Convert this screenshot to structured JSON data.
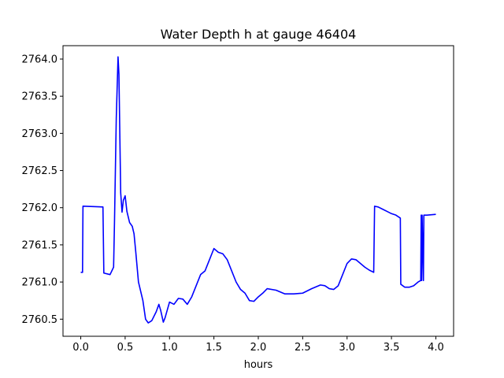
{
  "chart_data": {
    "type": "line",
    "title": "Water Depth h at gauge 46404",
    "xlabel": "hours",
    "ylabel": "",
    "xlim": [
      -0.2,
      4.2
    ],
    "ylim": [
      2760.27,
      2764.18
    ],
    "xticks": [
      0.0,
      0.5,
      1.0,
      1.5,
      2.0,
      2.5,
      3.0,
      3.5,
      4.0
    ],
    "xtick_labels": [
      "0.0",
      "0.5",
      "1.0",
      "1.5",
      "2.0",
      "2.5",
      "3.0",
      "3.5",
      "4.0"
    ],
    "yticks": [
      2760.5,
      2761.0,
      2761.5,
      2762.0,
      2762.5,
      2763.0,
      2763.5,
      2764.0
    ],
    "ytick_labels": [
      "2760.5",
      "2761.0",
      "2761.5",
      "2762.0",
      "2762.5",
      "2763.0",
      "2763.5",
      "2764.0"
    ],
    "grid": false,
    "series": [
      {
        "color": "#0000ff",
        "x": [
          0.0,
          0.02,
          0.025,
          0.25,
          0.26,
          0.33,
          0.37,
          0.38,
          0.4,
          0.42,
          0.43,
          0.45,
          0.465,
          0.48,
          0.5,
          0.52,
          0.55,
          0.58,
          0.6,
          0.62,
          0.65,
          0.7,
          0.73,
          0.76,
          0.8,
          0.85,
          0.88,
          0.9,
          0.93,
          0.95,
          1.0,
          1.05,
          1.1,
          1.15,
          1.2,
          1.25,
          1.3,
          1.35,
          1.4,
          1.45,
          1.5,
          1.55,
          1.6,
          1.65,
          1.7,
          1.75,
          1.8,
          1.85,
          1.9,
          1.95,
          2.0,
          2.05,
          2.1,
          2.2,
          2.3,
          2.4,
          2.5,
          2.6,
          2.7,
          2.75,
          2.8,
          2.85,
          2.9,
          2.95,
          3.0,
          3.05,
          3.1,
          3.15,
          3.2,
          3.25,
          3.3,
          3.31,
          3.35,
          3.4,
          3.45,
          3.5,
          3.55,
          3.6,
          3.605,
          3.65,
          3.7,
          3.75,
          3.8,
          3.83,
          3.835,
          3.84,
          3.845,
          3.86,
          3.865,
          3.87,
          3.9,
          4.0
        ],
        "y": [
          2761.13,
          2761.13,
          2762.02,
          2762.01,
          2761.12,
          2761.1,
          2761.2,
          2761.8,
          2763.2,
          2764.03,
          2763.8,
          2762.2,
          2761.94,
          2762.1,
          2762.16,
          2761.95,
          2761.8,
          2761.75,
          2761.65,
          2761.4,
          2761.0,
          2760.75,
          2760.5,
          2760.45,
          2760.48,
          2760.6,
          2760.7,
          2760.62,
          2760.46,
          2760.52,
          2760.73,
          2760.7,
          2760.78,
          2760.77,
          2760.7,
          2760.8,
          2760.95,
          2761.1,
          2761.15,
          2761.3,
          2761.45,
          2761.4,
          2761.38,
          2761.3,
          2761.15,
          2761.0,
          2760.9,
          2760.85,
          2760.75,
          2760.74,
          2760.8,
          2760.85,
          2760.91,
          2760.89,
          2760.84,
          2760.84,
          2760.85,
          2760.91,
          2760.96,
          2760.95,
          2760.91,
          2760.9,
          2760.95,
          2761.1,
          2761.25,
          2761.31,
          2761.3,
          2761.25,
          2761.2,
          2761.16,
          2761.13,
          2762.02,
          2762.01,
          2761.98,
          2761.95,
          2761.92,
          2761.9,
          2761.86,
          2760.97,
          2760.93,
          2760.93,
          2760.95,
          2761.0,
          2761.02,
          2761.9,
          2761.02,
          2761.9,
          2761.02,
          2761.9,
          2761.9,
          2761.9,
          2761.91
        ]
      }
    ]
  }
}
